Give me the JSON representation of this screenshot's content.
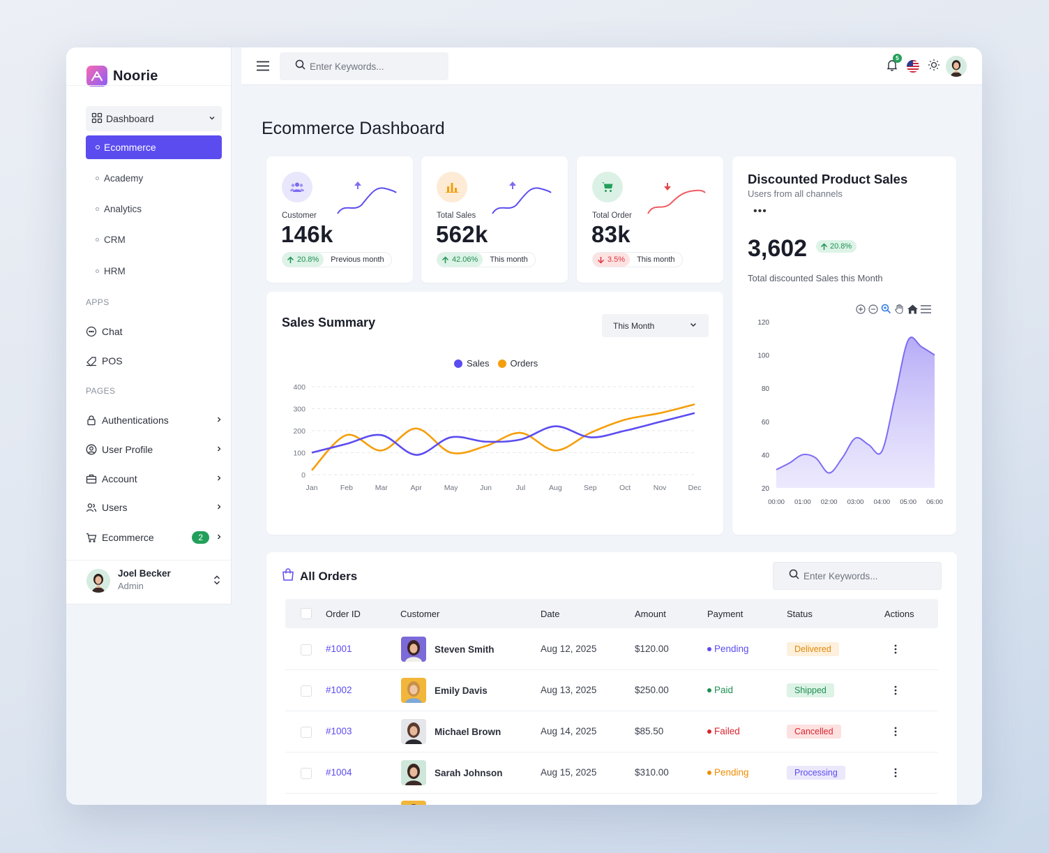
{
  "brand": {
    "name": "Noorie"
  },
  "sidebar": {
    "dashboard_label": "Dashboard",
    "active_label": "Ecommerce",
    "sub_items": [
      "Academy",
      "Analytics",
      "CRM",
      "HRM"
    ],
    "apps_label": "APPS",
    "apps": [
      "Chat",
      "POS"
    ],
    "pages_label": "PAGES",
    "pages": [
      "Authentications",
      "User Profile",
      "Account",
      "Users",
      "Ecommerce"
    ],
    "ecommerce_badge": "2",
    "user": {
      "name": "Joel Becker",
      "role": "Admin"
    }
  },
  "topbar": {
    "search_placeholder": "Enter Keywords...",
    "notification_count": "5"
  },
  "page": {
    "title": "Ecommerce Dashboard"
  },
  "stats": [
    {
      "label": "Customer",
      "value": "146k",
      "change": "20.8%",
      "direction": "up",
      "period": "Previous month",
      "color": "#8b7cf6"
    },
    {
      "label": "Total Sales",
      "value": "562k",
      "change": "42.06%",
      "direction": "up",
      "period": "This month",
      "color": "#f59e0b"
    },
    {
      "label": "Total Order",
      "value": "83k",
      "change": "3.5%",
      "direction": "down",
      "period": "This month",
      "color": "#22a05b"
    }
  ],
  "sales_summary": {
    "title": "Sales Summary",
    "period_select": "This Month"
  },
  "discounted": {
    "title": "Discounted Product Sales",
    "subtitle": "Users from all channels",
    "value": "3,602",
    "change": "20.8%",
    "description": "Total discounted Sales this Month"
  },
  "orders": {
    "title": "All Orders",
    "search_placeholder": "Enter Keywords...",
    "columns": [
      "Order ID",
      "Customer",
      "Date",
      "Amount",
      "Payment",
      "Status",
      "Actions"
    ],
    "rows": [
      {
        "id": "#1001",
        "customer": "Steven Smith",
        "date": "Aug 12, 2025",
        "amount": "$120.00",
        "payment": "Pending",
        "status": "Delivered"
      },
      {
        "id": "#1002",
        "customer": "Emily Davis",
        "date": "Aug 13, 2025",
        "amount": "$250.00",
        "payment": "Paid",
        "status": "Shipped"
      },
      {
        "id": "#1003",
        "customer": "Michael Brown",
        "date": "Aug 14, 2025",
        "amount": "$85.50",
        "payment": "Failed",
        "status": "Cancelled"
      },
      {
        "id": "#1004",
        "customer": "Sarah Johnson",
        "date": "Aug 15, 2025",
        "amount": "$310.00",
        "payment": "Pending",
        "status": "Processing"
      }
    ]
  },
  "chart_data": [
    {
      "type": "line",
      "title": "Sales Summary",
      "categories": [
        "Jan",
        "Feb",
        "Mar",
        "Apr",
        "May",
        "Jun",
        "Jul",
        "Aug",
        "Sep",
        "Oct",
        "Nov",
        "Dec"
      ],
      "series": [
        {
          "name": "Sales",
          "color": "#5b4cf0",
          "values": [
            100,
            140,
            180,
            90,
            170,
            150,
            160,
            220,
            170,
            200,
            240,
            280
          ]
        },
        {
          "name": "Orders",
          "color": "#f59e0b",
          "values": [
            20,
            180,
            110,
            210,
            100,
            130,
            190,
            110,
            190,
            250,
            280,
            320
          ]
        }
      ],
      "xlabel": "",
      "ylabel": "",
      "ylim": [
        0,
        400
      ],
      "yticks": [
        0,
        100,
        200,
        300,
        400
      ],
      "grid": true,
      "legend": "top-center"
    },
    {
      "type": "area",
      "title": "Discounted Product Sales",
      "x": [
        "00:00",
        "00:30",
        "01:00",
        "01:30",
        "02:00",
        "02:30",
        "03:00",
        "03:30",
        "04:00",
        "04:30",
        "05:00",
        "05:30",
        "06:00"
      ],
      "series": [
        {
          "name": "",
          "color": "#7c6cf2",
          "values": [
            31,
            35,
            40,
            38,
            29,
            38,
            50,
            46,
            42,
            75,
            109,
            105,
            100
          ]
        }
      ],
      "xticks": [
        "00:00",
        "01:00",
        "02:00",
        "03:00",
        "04:00",
        "05:00",
        "06:00"
      ],
      "ylim": [
        20,
        120
      ],
      "yticks": [
        20,
        40,
        60,
        80,
        100,
        120
      ],
      "grid": false
    }
  ]
}
